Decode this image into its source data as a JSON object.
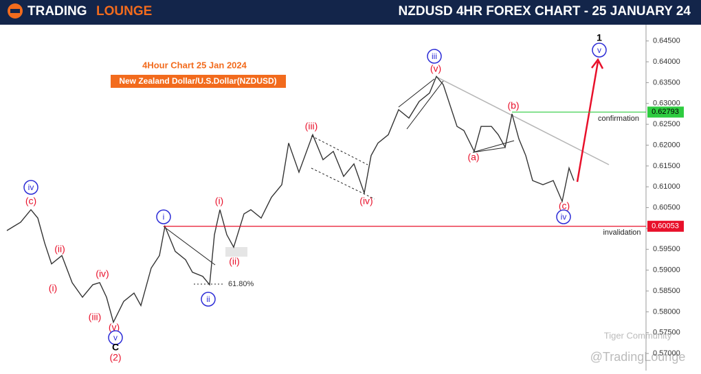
{
  "header": {
    "logo_part1": "TRADING",
    "logo_part2": "LOUNGE",
    "title": "NZDUSD 4HR FOREX CHART - 25 JANUARY 24"
  },
  "chart_data": {
    "type": "line",
    "title": "4Hour Chart 25 Jan 2024",
    "subtitle": "New Zealand Dollar/U.S.Dollar(NZDUSD)",
    "series": [
      {
        "name": "NZDUSD",
        "color": "#333333",
        "x": [
          0,
          10,
          20,
          35,
          45,
          55,
          65,
          80,
          95,
          110,
          125,
          135,
          145,
          155,
          170,
          185,
          195,
          210,
          222,
          230,
          245,
          260,
          270,
          285,
          295,
          302,
          310,
          320,
          330,
          345,
          355,
          370,
          385,
          400,
          410,
          425,
          445,
          460,
          475,
          490,
          505,
          520,
          530,
          540,
          555,
          570,
          585,
          600,
          615,
          625,
          635,
          645,
          655,
          665,
          680,
          690,
          705,
          715,
          725,
          735,
          745,
          755,
          765,
          780,
          795,
          808,
          818,
          825
        ],
        "values": [
          0.5995,
          0.6005,
          0.6015,
          0.6045,
          0.6025,
          0.5965,
          0.5915,
          0.5935,
          0.587,
          0.5835,
          0.5865,
          0.587,
          0.5835,
          0.5775,
          0.5825,
          0.5845,
          0.5815,
          0.5905,
          0.5935,
          0.6005,
          0.5945,
          0.5925,
          0.5895,
          0.5885,
          0.5865,
          0.5985,
          0.6045,
          0.5985,
          0.5955,
          0.6035,
          0.6045,
          0.6025,
          0.6075,
          0.6105,
          0.6205,
          0.6135,
          0.6225,
          0.6165,
          0.6185,
          0.6125,
          0.6155,
          0.6085,
          0.6175,
          0.6205,
          0.6225,
          0.6285,
          0.6265,
          0.6305,
          0.6325,
          0.6365,
          0.6345,
          0.6295,
          0.6245,
          0.6235,
          0.6185,
          0.6245,
          0.6245,
          0.6225,
          0.6195,
          0.6275,
          0.6215,
          0.6175,
          0.6115,
          0.6105,
          0.6115,
          0.6065,
          0.6145,
          0.6115
        ]
      }
    ],
    "xlim": [
      0,
      930
    ],
    "ylim": [
      0.5659,
      0.6489
    ],
    "yticks": [
      {
        "value": 0.57,
        "label": "0.57000"
      },
      {
        "value": 0.575,
        "label": "0.57500"
      },
      {
        "value": 0.58,
        "label": "0.58000"
      },
      {
        "value": 0.585,
        "label": "0.58500"
      },
      {
        "value": 0.59,
        "label": "0.59000"
      },
      {
        "value": 0.595,
        "label": "0.59500"
      },
      {
        "value": 0.6,
        "label": "0.60000"
      },
      {
        "value": 0.605,
        "label": "0.60500"
      },
      {
        "value": 0.61,
        "label": "0.61000"
      },
      {
        "value": 0.615,
        "label": "0.61500"
      },
      {
        "value": 0.62,
        "label": "0.62000"
      },
      {
        "value": 0.625,
        "label": "0.62500"
      },
      {
        "value": 0.63,
        "label": "0.63000"
      },
      {
        "value": 0.635,
        "label": "0.63500"
      },
      {
        "value": 0.64,
        "label": "0.64000"
      },
      {
        "value": 0.645,
        "label": "0.64500"
      }
    ],
    "levels": [
      {
        "name": "confirmation",
        "value": 0.62793,
        "color": "#2ecc40"
      },
      {
        "name": "invalidation",
        "value": 0.60053,
        "color": "#e8102a"
      }
    ],
    "fib_label": "61.80%",
    "wave_labels": [
      {
        "text": "iv",
        "color": "#2b2bd6",
        "circled": true
      },
      {
        "text": "(c)",
        "color": "#e8102a",
        "circled": false
      },
      {
        "text": "(ii)",
        "color": "#e8102a",
        "circled": false
      },
      {
        "text": "(i)",
        "color": "#e8102a",
        "circled": false
      },
      {
        "text": "(iv)",
        "color": "#e8102a",
        "circled": false
      },
      {
        "text": "(iii)",
        "color": "#e8102a",
        "circled": false
      },
      {
        "text": "(v)",
        "color": "#e8102a",
        "circled": false
      },
      {
        "text": "v",
        "color": "#2b2bd6",
        "circled": true
      },
      {
        "text": "C",
        "color": "#000000",
        "circled": false
      },
      {
        "text": "(2)",
        "color": "#e8102a",
        "circled": false
      },
      {
        "text": "i",
        "color": "#2b2bd6",
        "circled": true
      },
      {
        "text": "ii",
        "color": "#2b2bd6",
        "circled": true
      },
      {
        "text": "(i)",
        "color": "#e8102a",
        "circled": false
      },
      {
        "text": "(ii)",
        "color": "#e8102a",
        "circled": false
      },
      {
        "text": "(iii)",
        "color": "#e8102a",
        "circled": false
      },
      {
        "text": "(iv)",
        "color": "#e8102a",
        "circled": false
      },
      {
        "text": "iii",
        "color": "#2b2bd6",
        "circled": true
      },
      {
        "text": "(v)",
        "color": "#e8102a",
        "circled": false
      },
      {
        "text": "(b)",
        "color": "#e8102a",
        "circled": false
      },
      {
        "text": "(a)",
        "color": "#e8102a",
        "circled": false
      },
      {
        "text": "(c)",
        "color": "#e8102a",
        "circled": false
      },
      {
        "text": "iv",
        "color": "#2b2bd6",
        "circled": true
      },
      {
        "text": "1",
        "color": "#000000",
        "circled": false
      },
      {
        "text": "v",
        "color": "#2b2bd6",
        "circled": true
      }
    ]
  },
  "watermarks": [
    "Tiger Community",
    "@TradingLounge"
  ]
}
